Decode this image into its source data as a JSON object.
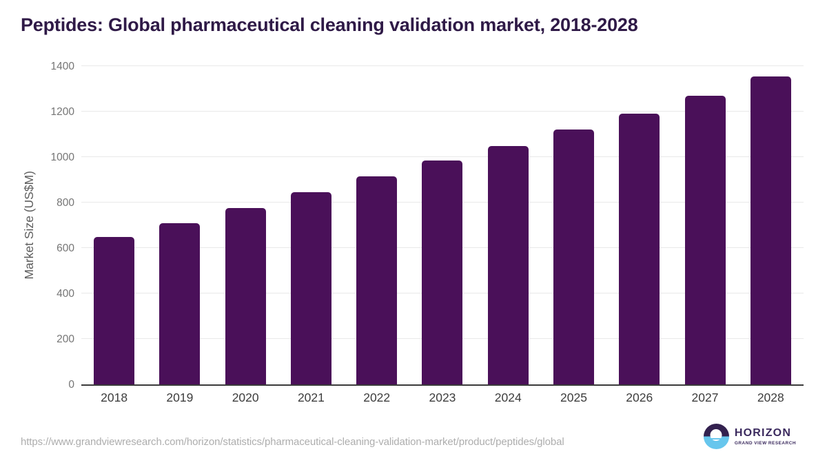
{
  "title": "Peptides: Global pharmaceutical cleaning validation market, 2018-2028",
  "footer": {
    "source_url": "https://www.grandviewresearch.com/horizon/statistics/pharmaceutical-cleaning-validation-market/product/peptides/global",
    "logo": {
      "name": "HORIZON",
      "subtitle": "GRAND VIEW RESEARCH",
      "icon": "horizon-sunset-icon"
    }
  },
  "colors": {
    "bar": "#4a1059",
    "title_text": "#2f1a47",
    "axis_line": "#3a3a3a",
    "gridline": "#e9e9e9",
    "y_tick_text": "#757575",
    "x_tick_text": "#3d3d3d",
    "url_text": "#adadad",
    "logo_purple": "#3b2a5e",
    "logo_dark_half": "#33214f",
    "logo_blue_half": "#67c6ed"
  },
  "chart_data": {
    "type": "bar",
    "title": "Peptides: Global pharmaceutical cleaning validation market, 2018-2028",
    "categories": [
      "2018",
      "2019",
      "2020",
      "2021",
      "2022",
      "2023",
      "2024",
      "2025",
      "2026",
      "2027",
      "2028"
    ],
    "values": [
      650,
      710,
      775,
      845,
      915,
      985,
      1050,
      1120,
      1190,
      1270,
      1355
    ],
    "xlabel": "",
    "ylabel": "Market Size (US$M)",
    "ylim": [
      0,
      1400
    ],
    "yticks": [
      0,
      200,
      400,
      600,
      800,
      1000,
      1200,
      1400
    ],
    "grid": true,
    "legend": false,
    "bar_color": "#4a1059"
  }
}
